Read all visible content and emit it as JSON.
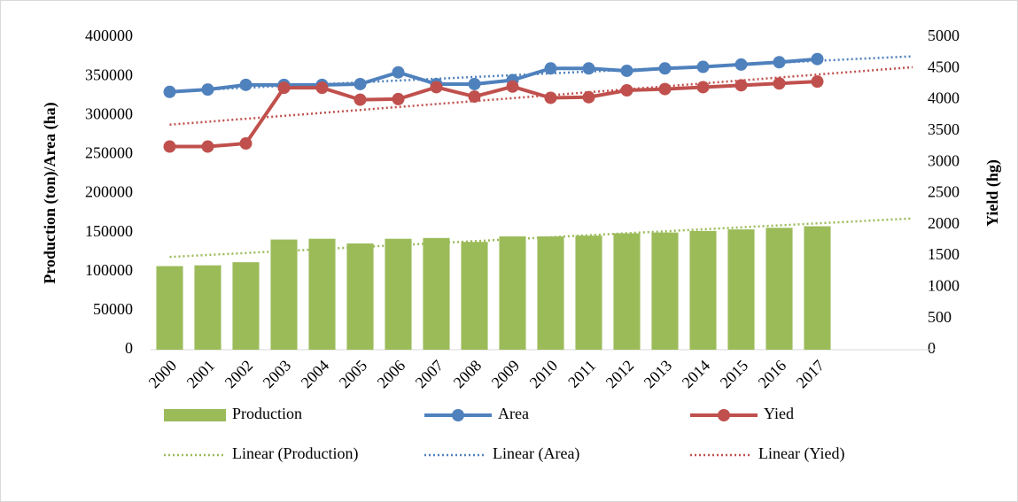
{
  "chart_data": {
    "type": "bar-line",
    "categories": [
      "2000",
      "2001",
      "2002",
      "2003",
      "2004",
      "2005",
      "2006",
      "2007",
      "2008",
      "2009",
      "2010",
      "2011",
      "2012",
      "2013",
      "2014",
      "2015",
      "2016",
      "2017"
    ],
    "y_label": "Production (ton)/Area (ha)",
    "y2_label": "Yield (hg)",
    "ylim": [
      0,
      400000
    ],
    "yticks": [
      0,
      50000,
      100000,
      150000,
      200000,
      250000,
      300000,
      350000,
      400000
    ],
    "y2lim": [
      0,
      5000
    ],
    "y2ticks": [
      0,
      500,
      1000,
      1500,
      2000,
      2500,
      3000,
      3500,
      4000,
      4500,
      5000
    ],
    "series": [
      {
        "name": "Production",
        "type": "bar",
        "color": "#9bbb59",
        "values": [
          107000,
          108000,
          112000,
          141000,
          142000,
          136000,
          142000,
          143000,
          138000,
          145000,
          145000,
          146000,
          149000,
          150000,
          152000,
          154000,
          156000,
          158000
        ]
      },
      {
        "name": "Area",
        "type": "line",
        "color": "#4f81bd",
        "values": [
          330000,
          333000,
          339000,
          339000,
          339000,
          340000,
          355000,
          340000,
          340000,
          345000,
          360000,
          360000,
          357000,
          360000,
          362000,
          365000,
          368000,
          372000
        ]
      },
      {
        "name": "Yied",
        "type": "line",
        "axis": "y2",
        "color": "#c0504d",
        "values": [
          3250,
          3250,
          3300,
          4190,
          4190,
          4000,
          4010,
          4200,
          4050,
          4210,
          4030,
          4040,
          4150,
          4170,
          4200,
          4230,
          4260,
          4290
        ]
      }
    ],
    "trendlines": [
      {
        "name": "Linear (Production)",
        "series": 0
      },
      {
        "name": "Linear (Area)",
        "series": 1
      },
      {
        "name": "Linear (Yied)",
        "series": 2
      }
    ],
    "trendline_forward": 2.5
  }
}
